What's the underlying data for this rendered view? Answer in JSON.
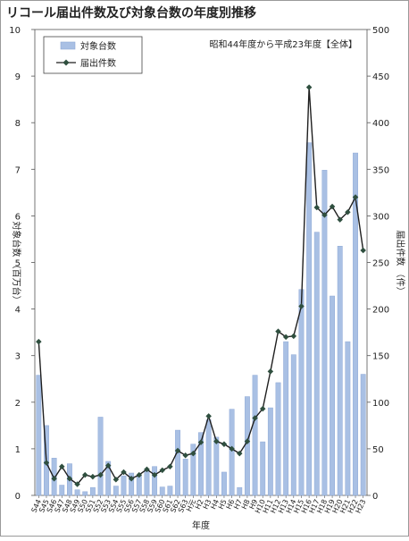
{
  "chart_data": {
    "type": "bar+line",
    "title": "リコール届出件数及び対象台数の年度別推移",
    "subtitle": "昭和44年度から平成23年度【全体】",
    "xlabel": "年度",
    "ylabel_left": "対象台数 （百万台）",
    "ylabel_right": "届出件数 （件）",
    "ylim_left": [
      0,
      10
    ],
    "ylim_right": [
      0,
      500
    ],
    "yticks_left": [
      "0",
      "1",
      "2",
      "3",
      "4",
      "5",
      "6",
      "7",
      "8",
      "9",
      "10"
    ],
    "yticks_right": [
      "0",
      "50",
      "100",
      "150",
      "200",
      "250",
      "300",
      "350",
      "400",
      "450",
      "500"
    ],
    "legend_position": "top-left",
    "grid": false,
    "colors": {
      "bars": "#a9c0e4",
      "bar_edge": "#8fa9d6",
      "line": "#1f1f1f",
      "marker": "#2f4f3f"
    },
    "categories": [
      "S44",
      "S45",
      "S46",
      "S47",
      "S48",
      "S49",
      "S50",
      "S51",
      "S52",
      "S53",
      "S54",
      "S55",
      "S56",
      "S57",
      "S58",
      "S59",
      "S60",
      "S61",
      "S62",
      "S63",
      "H元",
      "H2",
      "H3",
      "H4",
      "H5",
      "H6",
      "H7",
      "H8",
      "H9",
      "H10",
      "H11",
      "H12",
      "H13",
      "H14",
      "H15",
      "H16",
      "H17",
      "H18",
      "H19",
      "H20",
      "H21",
      "H22",
      "H23"
    ],
    "series": [
      {
        "name": "対象台数",
        "type": "bar",
        "axis": "left",
        "values": [
          2.58,
          1.5,
          0.8,
          0.22,
          0.68,
          0.12,
          0.08,
          0.17,
          1.68,
          0.73,
          0.2,
          0.42,
          0.48,
          0.42,
          0.57,
          0.62,
          0.18,
          0.2,
          1.4,
          0.78,
          1.1,
          1.35,
          1.62,
          1.25,
          0.5,
          1.85,
          0.17,
          2.12,
          2.58,
          1.15,
          1.88,
          2.42,
          3.3,
          3.02,
          4.42,
          7.57,
          5.65,
          6.98,
          4.28,
          5.35,
          3.3,
          7.35,
          2.6
        ]
      },
      {
        "name": "届出件数",
        "type": "line",
        "axis": "right",
        "values": [
          165,
          35,
          18,
          31,
          18,
          12,
          22,
          20,
          22,
          32,
          17,
          25,
          18,
          22,
          28,
          22,
          27,
          31,
          48,
          43,
          45,
          57,
          85,
          58,
          55,
          50,
          45,
          58,
          83,
          93,
          133,
          176,
          170,
          171,
          203,
          438,
          309,
          301,
          310,
          296,
          304,
          320,
          263
        ]
      }
    ]
  }
}
